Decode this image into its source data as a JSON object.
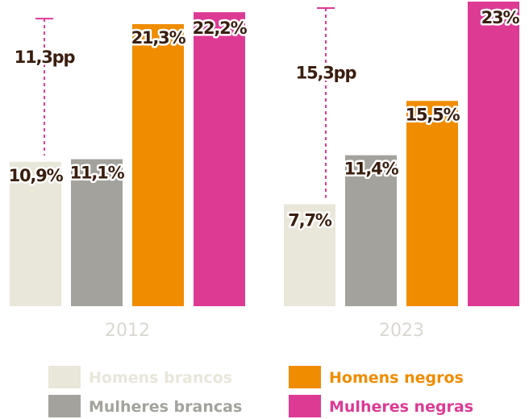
{
  "chart_data": {
    "type": "bar",
    "categories": [
      "2012",
      "2023"
    ],
    "series": [
      {
        "name": "Homens brancos",
        "color": "#e9e6da",
        "values": [
          10.9,
          7.7
        ],
        "labels": [
          "10,9%",
          "7,7%"
        ]
      },
      {
        "name": "Mulheres brancas",
        "color": "#a3a29c",
        "values": [
          11.1,
          11.4
        ],
        "labels": [
          "11,1%",
          "11,4%"
        ]
      },
      {
        "name": "Homens negros",
        "color": "#f08c00",
        "values": [
          21.3,
          15.5
        ],
        "labels": [
          "21,3%",
          "15,5%"
        ]
      },
      {
        "name": "Mulheres negras",
        "color": "#dd3a94",
        "values": [
          22.2,
          23.0
        ],
        "labels": [
          "22,2%",
          "23%"
        ]
      }
    ],
    "gap_annotations": [
      {
        "category": "2012",
        "label": "11,3pp",
        "from": 10.9,
        "to": 22.2
      },
      {
        "category": "2023",
        "label": "15,3pp",
        "from": 7.7,
        "to": 23.0
      }
    ],
    "ylim": [
      0,
      23
    ]
  },
  "colors": {
    "label_text": "#3a1e0f",
    "label_outline": "#ffffff",
    "category_label": "#d9d7d0",
    "gap_line": "#dd3a94"
  }
}
